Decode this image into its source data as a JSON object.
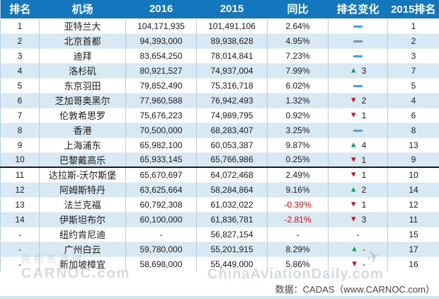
{
  "chart_data": {
    "type": "table",
    "columns": [
      "排名",
      "机场",
      "2016",
      "2015",
      "同比",
      "排名变化",
      "2015排名"
    ],
    "rows": [
      {
        "rank": "1",
        "airport": "亚特兰大",
        "pax_2016": "104,171,935",
        "pax_2015": "101,491,106",
        "yoy": "2.64%",
        "change_dir": "same",
        "change_value": "",
        "rank_2015": "1"
      },
      {
        "rank": "2",
        "airport": "北京首都",
        "pax_2016": "94,393,000",
        "pax_2015": "89,938,628",
        "yoy": "4.95%",
        "change_dir": "same",
        "change_value": "",
        "rank_2015": "2"
      },
      {
        "rank": "3",
        "airport": "迪拜",
        "pax_2016": "83,654,250",
        "pax_2015": "78,014,841",
        "yoy": "7.23%",
        "change_dir": "same",
        "change_value": "",
        "rank_2015": "3"
      },
      {
        "rank": "4",
        "airport": "洛杉矶",
        "pax_2016": "80,921,527",
        "pax_2015": "74,937,004",
        "yoy": "7.99%",
        "change_dir": "up",
        "change_value": "3",
        "rank_2015": "7"
      },
      {
        "rank": "5",
        "airport": "东京羽田",
        "pax_2016": "79,852,490",
        "pax_2015": "75,316,718",
        "yoy": "6.02%",
        "change_dir": "same",
        "change_value": "",
        "rank_2015": "5"
      },
      {
        "rank": "6",
        "airport": "芝加哥奥黑尔",
        "pax_2016": "77,960,588",
        "pax_2015": "76,942,493",
        "yoy": "1.32%",
        "change_dir": "down",
        "change_value": "2",
        "rank_2015": "4"
      },
      {
        "rank": "7",
        "airport": "伦敦希思罗",
        "pax_2016": "75,676,223",
        "pax_2015": "74,989,795",
        "yoy": "0.92%",
        "change_dir": "down",
        "change_value": "1",
        "rank_2015": "6"
      },
      {
        "rank": "8",
        "airport": "香港",
        "pax_2016": "70,500,000",
        "pax_2015": "68,283,407",
        "yoy": "3.25%",
        "change_dir": "same",
        "change_value": "",
        "rank_2015": "8"
      },
      {
        "rank": "9",
        "airport": "上海浦东",
        "pax_2016": "65,982,100",
        "pax_2015": "60,053,387",
        "yoy": "9.87%",
        "change_dir": "up",
        "change_value": "4",
        "rank_2015": "13"
      },
      {
        "rank": "10",
        "airport": "巴黎戴高乐",
        "pax_2016": "65,933,145",
        "pax_2015": "65,766,986",
        "yoy": "0.25%",
        "change_dir": "down",
        "change_value": "1",
        "rank_2015": "9"
      },
      {
        "rank": "11",
        "airport": "达拉斯-沃尔斯堡",
        "pax_2016": "65,670,697",
        "pax_2015": "64,072,468",
        "yoy": "2.49%",
        "change_dir": "down",
        "change_value": "1",
        "rank_2015": "10"
      },
      {
        "rank": "12",
        "airport": "阿姆斯特丹",
        "pax_2016": "63,625,664",
        "pax_2015": "58,284,864",
        "yoy": "9.16%",
        "change_dir": "up",
        "change_value": "2",
        "rank_2015": "14"
      },
      {
        "rank": "13",
        "airport": "法兰克福",
        "pax_2016": "60,792,308",
        "pax_2015": "61,032,022",
        "yoy": "-0.39%",
        "change_dir": "down",
        "change_value": "1",
        "rank_2015": "12"
      },
      {
        "rank": "14",
        "airport": "伊斯坦布尔",
        "pax_2016": "60,100,000",
        "pax_2015": "61,836,781",
        "yoy": "-2.81%",
        "change_dir": "down",
        "change_value": "3",
        "rank_2015": "11"
      },
      {
        "rank": "-",
        "airport": "纽约肯尼迪",
        "pax_2016": "-",
        "pax_2015": "56,827,154",
        "yoy": "-",
        "change_dir": "none",
        "change_value": "-",
        "rank_2015": "15"
      },
      {
        "rank": "-",
        "airport": "广州白云",
        "pax_2016": "59,780,000",
        "pax_2015": "55,201,915",
        "yoy": "8.29%",
        "change_dir": "up",
        "change_value": "-",
        "rank_2015": "17"
      },
      {
        "rank": "-",
        "airport": "新加坡樟宜",
        "pax_2016": "58,698,000",
        "pax_2015": "55,449,000",
        "yoy": "5.86%",
        "change_dir": "down",
        "change_value": "-",
        "rank_2015": "16"
      }
    ],
    "top10_separator_after_row": 10,
    "legend_position": "none",
    "grid": true
  },
  "footer": {
    "source": "数据：CADAS（www.CARNOC.com）"
  },
  "watermarks": {
    "left_line1": "民航资源网",
    "left_line2": "CARNOC.com",
    "right": "ChinaAviationDaily.com"
  },
  "icons": {
    "rank_up": "▲",
    "rank_down": "▼",
    "rank_none": "-",
    "plane": "✈"
  },
  "colors": {
    "header_bg": "#1377bd",
    "header_text": "#ffffff",
    "row_alt_bg": "#d9e9f4",
    "grid_line": "#aecfe6",
    "text": "#1a1a1a",
    "yoy_negative": "#f00000",
    "rank_up": "#00a650",
    "rank_down": "#e60012",
    "rank_same_dash": "#45a3dc",
    "separator": "#1a1a1a",
    "bottom_strip": "#cfe4f2",
    "watermark": "#9aa8b4"
  }
}
